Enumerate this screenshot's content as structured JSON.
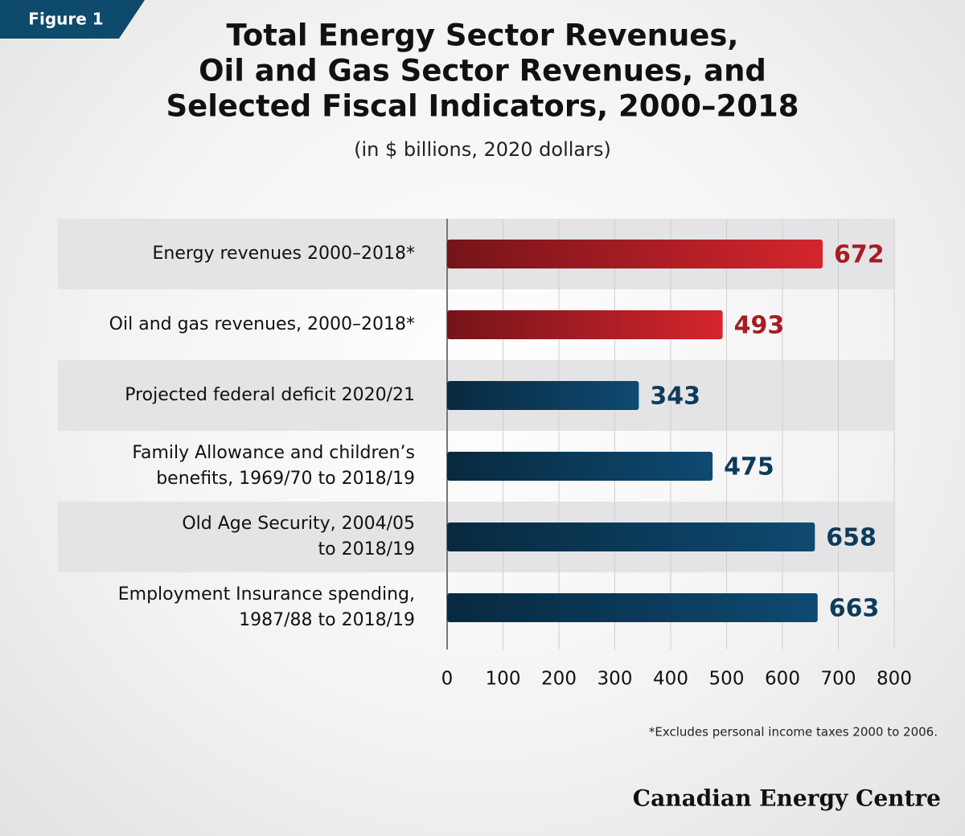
{
  "figure_label": "Figure 1",
  "chart_data": {
    "type": "bar",
    "orientation": "horizontal",
    "title": [
      "Total Energy Sector Revenues,",
      "Oil and Gas Sector Revenues, and",
      "Selected Fiscal Indicators, 2000–2018"
    ],
    "subtitle": "(in $ billions, 2020 dollars)",
    "categories": [
      [
        "Energy revenues 2000–2018*"
      ],
      [
        "Oil and gas revenues, 2000–2018*"
      ],
      [
        "Projected federal deficit 2020/21"
      ],
      [
        "Family Allowance and children’s",
        "benefits, 1969/70 to 2018/19"
      ],
      [
        "Old Age Security, 2004/05",
        "to 2018/19"
      ],
      [
        "Employment Insurance spending,",
        "1987/88 to 2018/19"
      ]
    ],
    "values": [
      672,
      493,
      343,
      475,
      658,
      663
    ],
    "colors": [
      "#d5252d",
      "#d5252d",
      "#0e4a72",
      "#0e4a72",
      "#0e4a72",
      "#0e4a72"
    ],
    "xlim": [
      0,
      800
    ],
    "xticks": [
      0,
      100,
      200,
      300,
      400,
      500,
      600,
      700,
      800
    ],
    "grid": true,
    "footnote": "*Excludes personal income taxes 2000 to 2006."
  },
  "source": "Canadian Energy Centre"
}
